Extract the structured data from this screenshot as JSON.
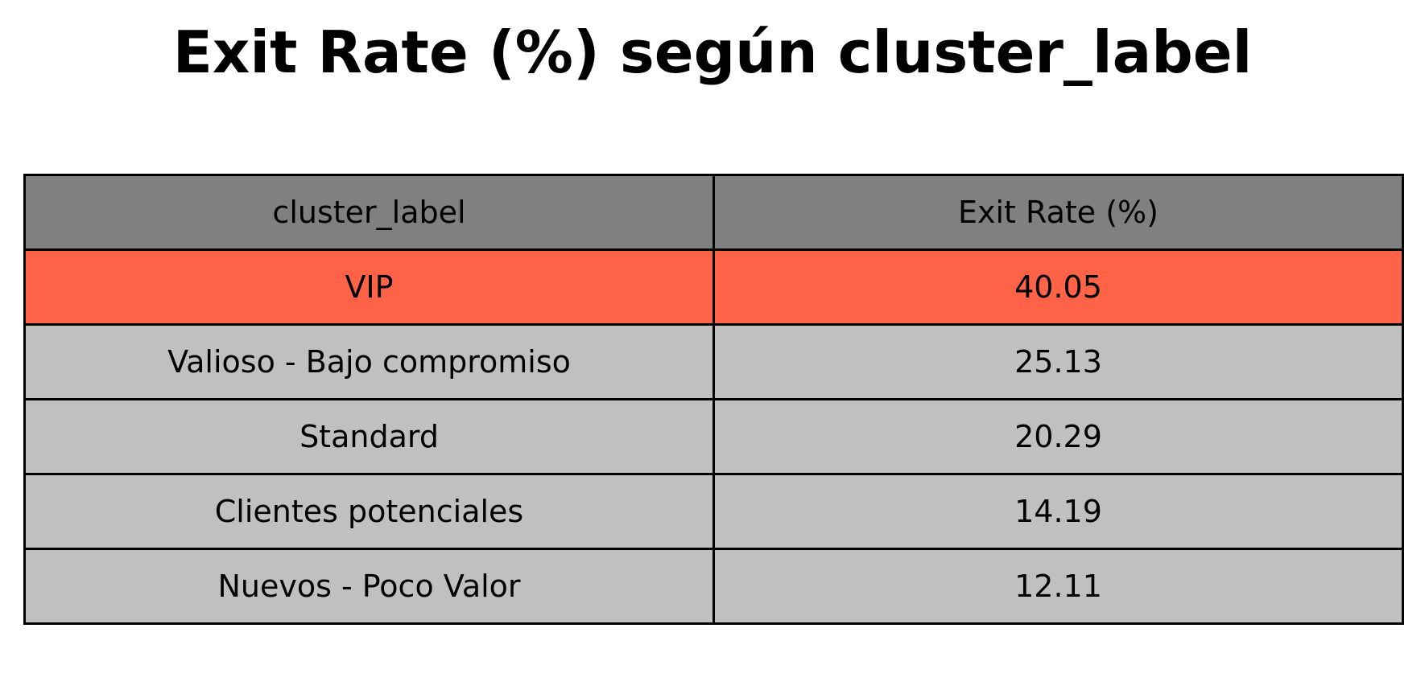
{
  "chart_data": {
    "type": "table",
    "title": "Exit Rate (%) según cluster_label",
    "columns": [
      "cluster_label",
      "Exit Rate (%)"
    ],
    "rows": [
      {
        "cluster_label": "VIP",
        "exit_rate": "40.05",
        "highlight": true
      },
      {
        "cluster_label": "Valioso - Bajo compromiso",
        "exit_rate": "25.13",
        "highlight": false
      },
      {
        "cluster_label": "Standard",
        "exit_rate": "20.29",
        "highlight": false
      },
      {
        "cluster_label": "Clientes potenciales",
        "exit_rate": "14.19",
        "highlight": false
      },
      {
        "cluster_label": "Nuevos - Poco Valor",
        "exit_rate": "12.11",
        "highlight": false
      }
    ]
  },
  "colors": {
    "header_bg": "#808080",
    "highlight_bg": "#ff6347",
    "row_bg": "#c0c0c0",
    "border": "#000000",
    "text": "#000000"
  }
}
